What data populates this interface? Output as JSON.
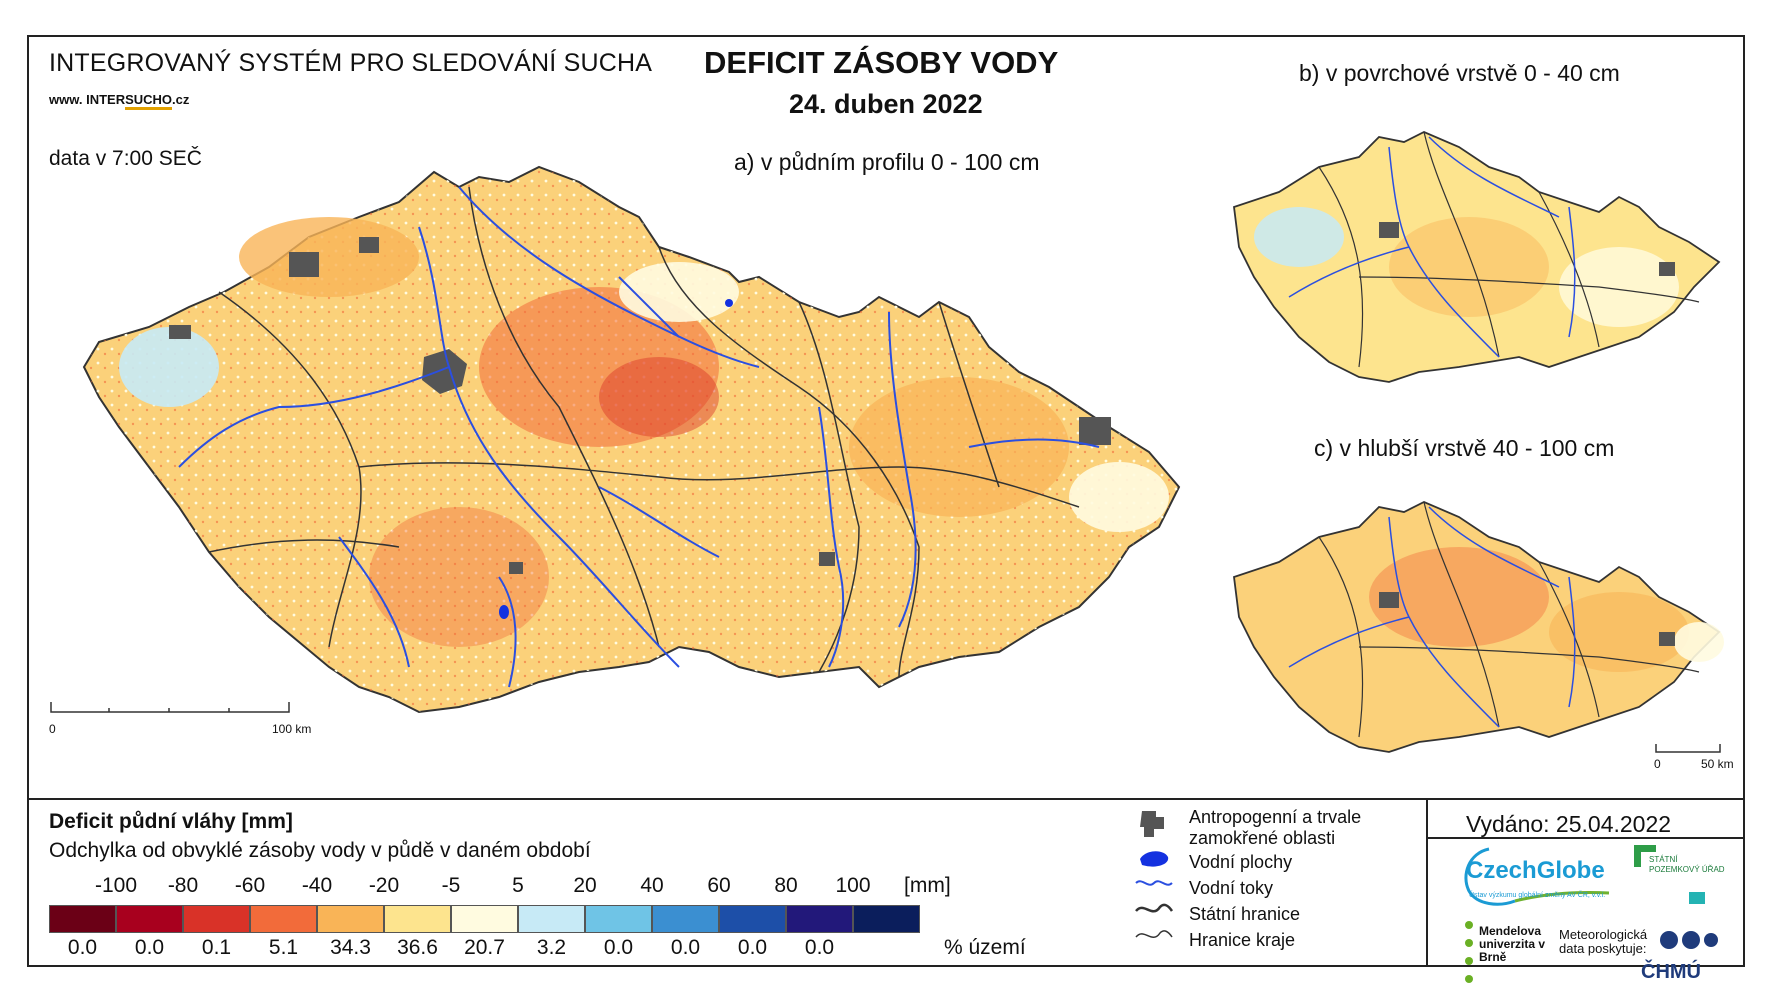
{
  "header": {
    "system_title": "INTEGROVANÝ SYSTÉM PRO SLEDOVÁNÍ SUCHA",
    "website_prefix": "www. INTER",
    "website_mid": "SUCHO",
    "website_suffix": ".cz",
    "data_time": "data v 7:00 SEČ",
    "main_title": "DEFICIT ZÁSOBY VODY",
    "date": "24. duben 2022"
  },
  "maps": {
    "a_title": "a) v půdním profilu 0 - 100 cm",
    "b_title": "b) v povrchové vrstvě 0 - 40 cm",
    "c_title": "c) v hlubší vrstvě 40 - 100 cm",
    "scale_a": {
      "zero": "0",
      "end": "100 km"
    },
    "scale_bc": {
      "zero": "0",
      "end": "50 km"
    }
  },
  "legend": {
    "title": "Deficit půdní vláhy  [mm]",
    "subtitle": "Odchylka od obvyklé zásoby vody v půdě v daném období",
    "unit": "[mm]",
    "pct_unit": "% území",
    "breaks": [
      "-100",
      "-80",
      "-60",
      "-40",
      "-20",
      "-5",
      "5",
      "20",
      "40",
      "60",
      "80",
      "100"
    ],
    "bins": [
      {
        "color": "#6b0016",
        "pct": "0.0"
      },
      {
        "color": "#a8001e",
        "pct": "0.0"
      },
      {
        "color": "#d93228",
        "pct": "0.1"
      },
      {
        "color": "#f26b3a",
        "pct": "5.1"
      },
      {
        "color": "#f9b457",
        "pct": "34.3"
      },
      {
        "color": "#fde48e",
        "pct": "36.6"
      },
      {
        "color": "#fffbe0",
        "pct": "20.7"
      },
      {
        "color": "#c7eaf6",
        "pct": "3.2"
      },
      {
        "color": "#6fc4e6",
        "pct": "0.0"
      },
      {
        "color": "#3b8fd1",
        "pct": "0.0"
      },
      {
        "color": "#1d4fa8",
        "pct": "0.0"
      },
      {
        "color": "#22187a",
        "pct": "0.0"
      },
      {
        "color": "#0b1e5c",
        "pct": ""
      }
    ]
  },
  "symbols": [
    {
      "icon": "urban-area-icon",
      "label": "Antropogenní a trvale zamokřené oblasti"
    },
    {
      "icon": "water-body-icon",
      "label": "Vodní plochy"
    },
    {
      "icon": "river-icon",
      "label": "Vodní toky"
    },
    {
      "icon": "state-border-icon",
      "label": "Státní hranice"
    },
    {
      "icon": "region-border-icon",
      "label": "Hranice kraje"
    }
  ],
  "footer": {
    "issued": "Vydáno: 25.04.2022",
    "czechglobe": "CzechGlobe",
    "czechglobe_sub": "Ústav výzkumu globální změny AV ČR, v.v.i.",
    "spu": "STÁTNÍ POZEMKOVÝ ÚŘAD",
    "mendel": "Mendelova univerzita v Brně",
    "meteo": "Meteorologická data poskytuje:",
    "chmu": "ČHMÚ"
  }
}
